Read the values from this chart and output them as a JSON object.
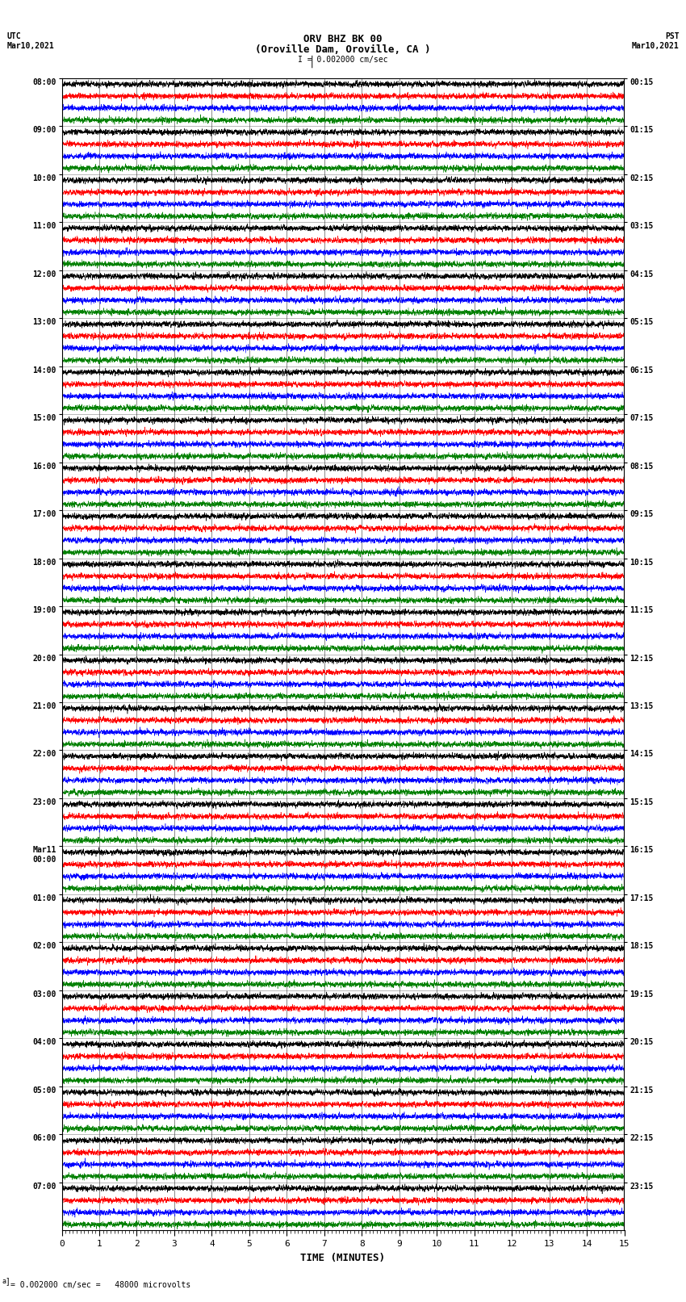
{
  "title_line1": "ORV BHZ BK 00",
  "title_line2": "(Oroville Dam, Oroville, CA )",
  "scale_label": "I = 0.002000 cm/sec",
  "left_label_top": "UTC",
  "left_label_date": "Mar10,2021",
  "right_label_top": "PST",
  "right_label_date": "Mar10,2021",
  "xlabel": "TIME (MINUTES)",
  "bottom_note": "= 0.002000 cm/sec =   48000 microvolts",
  "xlim": [
    0,
    15
  ],
  "xticks": [
    0,
    1,
    2,
    3,
    4,
    5,
    6,
    7,
    8,
    9,
    10,
    11,
    12,
    13,
    14,
    15
  ],
  "trace_colors": [
    "black",
    "red",
    "blue",
    "green"
  ],
  "background_color": "white",
  "grid_color": "#444444",
  "left_times_utc": [
    "08:00",
    "09:00",
    "10:00",
    "11:00",
    "12:00",
    "13:00",
    "14:00",
    "15:00",
    "16:00",
    "17:00",
    "18:00",
    "19:00",
    "20:00",
    "21:00",
    "22:00",
    "23:00",
    "Mar11\n00:00",
    "01:00",
    "02:00",
    "03:00",
    "04:00",
    "05:00",
    "06:00",
    "07:00"
  ],
  "right_times_pst": [
    "00:15",
    "01:15",
    "02:15",
    "03:15",
    "04:15",
    "05:15",
    "06:15",
    "07:15",
    "08:15",
    "09:15",
    "10:15",
    "11:15",
    "12:15",
    "13:15",
    "14:15",
    "15:15",
    "16:15",
    "17:15",
    "18:15",
    "19:15",
    "20:15",
    "21:15",
    "22:15",
    "23:15"
  ],
  "n_rows": 24,
  "traces_per_row": 4,
  "noise_seed": 42,
  "fig_width": 8.5,
  "fig_height": 16.13,
  "dpi": 100
}
